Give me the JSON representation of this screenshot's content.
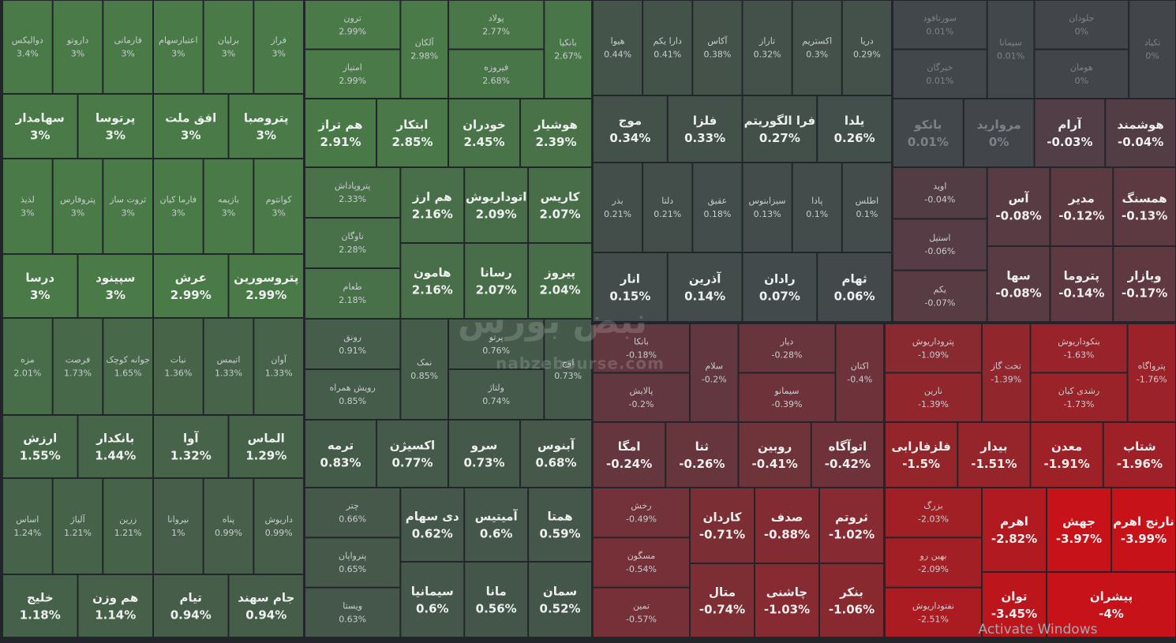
{
  "chart_data": {
    "type": "treemap",
    "categories": [
      "دوالیکس",
      "داروتو",
      "فارمانی",
      "اعتبارسهام",
      "برلیان",
      "فراز",
      "سهامدار",
      "پرتوسا",
      "افق ملت",
      "پتروصبا",
      "لذیذ",
      "پتروفارس",
      "ثروت ساز",
      "فارما کیان",
      "بازیمه",
      "کوانتوم",
      "درسا",
      "سپینود",
      "عرش",
      "پتروسورین",
      "مزه",
      "فرصت",
      "جوانه کوچک",
      "نبات",
      "اتیمس",
      "آوان",
      "ارزش",
      "بانکدار",
      "آوا",
      "الماس",
      "اساس",
      "آلیاژ",
      "زرین",
      "نیروانا",
      "پناه",
      "داریوش",
      "خلیج",
      "هم وزن",
      "تیام",
      "جام سهند",
      "ترون",
      "امتیاز",
      "آلکان",
      "پولاد",
      "فیروزه",
      "بانکیا",
      "هم تراز",
      "ابتکار",
      "خودران",
      "هوشیار",
      "پتروپاداش",
      "ناوگان",
      "طعام",
      "هم ارز",
      "اتوداریوش",
      "کاریس",
      "هامون",
      "رسانا",
      "پیروز",
      "رونق",
      "رویش همراه",
      "نمک",
      "پرتو",
      "ولتاژ",
      "اوج",
      "ترمه",
      "اکسیژن",
      "سرو",
      "آبنوس",
      "چتر",
      "پترواپان",
      "ویستا",
      "دی سهام",
      "آمیتیس",
      "همتا",
      "سیمانیا",
      "مانا",
      "سمان",
      "هیوا",
      "دارا یکم",
      "آکاس",
      "تاراز",
      "اکستریم",
      "دریا",
      "موج",
      "فلزا",
      "فرا الگوریتم",
      "یلدا",
      "بذر",
      "دلتا",
      "عقیق",
      "سیزابنوس",
      "پادا",
      "اطلس",
      "انار",
      "آذرین",
      "رادان",
      "ثهام",
      "سورنافود",
      "خیرگان",
      "سیمانا",
      "جلودان",
      "هومان",
      "تکیاد",
      "بانکو",
      "مروارید",
      "آرام",
      "هوشمند",
      "اوید",
      "استیل",
      "یکم",
      "آس",
      "مدیر",
      "همسنگ",
      "سها",
      "پتروما",
      "وبازار",
      "بانکا",
      "پالایش",
      "سلام",
      "دیار",
      "سیمانو",
      "اکتان",
      "امگا",
      "ثنا",
      "روبین",
      "اتوآگاه",
      "رخش",
      "مسگون",
      "تمین",
      "کاردان",
      "صدف",
      "ثروتم",
      "متال",
      "چاشنی",
      "بنکر",
      "پتروداریوش",
      "نارین",
      "تخت گاز",
      "بنکوداریوش",
      "رشدی کیان",
      "پترواگاه",
      "فلزفارابی",
      "بیدار",
      "معدن",
      "شتاب",
      "بزرگ",
      "بهین رو",
      "نفتوداریوش",
      "اهرم",
      "جهش",
      "نارنج اهرم",
      "توان",
      "پیشران"
    ],
    "values": [
      3.4,
      3,
      3,
      3,
      3,
      3,
      3,
      3,
      3,
      3,
      3,
      3,
      3,
      3,
      3,
      3,
      3,
      3,
      2.99,
      2.99,
      2.01,
      1.73,
      1.65,
      1.36,
      1.33,
      1.33,
      1.55,
      1.44,
      1.32,
      1.29,
      1.24,
      1.21,
      1.21,
      1,
      0.99,
      0.99,
      1.18,
      1.14,
      0.94,
      0.94,
      2.99,
      2.99,
      2.98,
      2.77,
      2.68,
      2.67,
      2.91,
      2.85,
      2.45,
      2.39,
      2.33,
      2.28,
      2.18,
      2.16,
      2.09,
      2.07,
      2.16,
      2.07,
      2.04,
      0.91,
      0.85,
      0.85,
      0.76,
      0.74,
      0.73,
      0.83,
      0.77,
      0.73,
      0.68,
      0.66,
      0.65,
      0.63,
      0.62,
      0.6,
      0.59,
      0.6,
      0.56,
      0.52,
      0.44,
      0.41,
      0.38,
      0.32,
      0.3,
      0.29,
      0.34,
      0.33,
      0.27,
      0.26,
      0.21,
      0.21,
      0.18,
      0.13,
      0.1,
      0.1,
      0.15,
      0.14,
      0.07,
      0.06,
      0.01,
      0.01,
      0.01,
      0,
      0,
      0,
      0.01,
      0,
      -0.03,
      -0.04,
      -0.04,
      -0.06,
      -0.07,
      -0.08,
      -0.12,
      -0.13,
      -0.08,
      -0.14,
      -0.17,
      -0.18,
      -0.2,
      -0.2,
      -0.28,
      -0.39,
      -0.4,
      -0.24,
      -0.26,
      -0.41,
      -0.42,
      -0.49,
      -0.54,
      -0.57,
      -0.71,
      -0.88,
      -1.02,
      -0.74,
      -1.03,
      -1.06,
      -1.09,
      -1.39,
      -1.39,
      -1.63,
      -1.73,
      -1.76,
      -1.5,
      -1.51,
      -1.91,
      -1.96,
      -2.03,
      -2.09,
      -2.51,
      -2.82,
      -3.97,
      -3.99,
      -3.45,
      -4
    ],
    "value_labels": [
      "3.4%",
      "3%",
      "3%",
      "3%",
      "3%",
      "3%",
      "3%",
      "3%",
      "3%",
      "3%",
      "3%",
      "3%",
      "3%",
      "3%",
      "3%",
      "3%",
      "3%",
      "3%",
      "2.99%",
      "2.99%",
      "2.01%",
      "1.73%",
      "1.65%",
      "1.36%",
      "1.33%",
      "1.33%",
      "1.55%",
      "1.44%",
      "1.32%",
      "1.29%",
      "1.24%",
      "1.21%",
      "1.21%",
      "1%",
      "0.99%",
      "0.99%",
      "1.18%",
      "1.14%",
      "0.94%",
      "0.94%",
      "2.99%",
      "2.99%",
      "2.98%",
      "2.77%",
      "2.68%",
      "2.67%",
      "2.91%",
      "2.85%",
      "2.45%",
      "2.39%",
      "2.33%",
      "2.28%",
      "2.18%",
      "2.16%",
      "2.09%",
      "2.07%",
      "2.16%",
      "2.07%",
      "2.04%",
      "0.91%",
      "0.85%",
      "0.85%",
      "0.76%",
      "0.74%",
      "0.73%",
      "0.83%",
      "0.77%",
      "0.73%",
      "0.68%",
      "0.66%",
      "0.65%",
      "0.63%",
      "0.62%",
      "0.6%",
      "0.59%",
      "0.6%",
      "0.56%",
      "0.52%",
      "0.44%",
      "0.41%",
      "0.38%",
      "0.32%",
      "0.3%",
      "0.29%",
      "0.34%",
      "0.33%",
      "0.27%",
      "0.26%",
      "0.21%",
      "0.21%",
      "0.18%",
      "0.13%",
      "0.1%",
      "0.1%",
      "0.15%",
      "0.14%",
      "0.07%",
      "0.06%",
      "0.01%",
      "0.01%",
      "0.01%",
      "0%",
      "0%",
      "0%",
      "0.01%",
      "0%",
      "-0.03%",
      "-0.04%",
      "-0.04%",
      "-0.06%",
      "-0.07%",
      "-0.08%",
      "-0.12%",
      "-0.13%",
      "-0.08%",
      "-0.14%",
      "-0.17%",
      "-0.18%",
      "-0.2%",
      "-0.2%",
      "-0.28%",
      "-0.39%",
      "-0.4%",
      "-0.24%",
      "-0.26%",
      "-0.41%",
      "-0.42%",
      "-0.49%",
      "-0.54%",
      "-0.57%",
      "-0.71%",
      "-0.88%",
      "-1.02%",
      "-0.74%",
      "-1.03%",
      "-1.06%",
      "-1.09%",
      "-1.39%",
      "-1.39%",
      "-1.63%",
      "-1.73%",
      "-1.76%",
      "-1.5%",
      "-1.51%",
      "-1.91%",
      "-1.96%",
      "-2.03%",
      "-2.09%",
      "-2.51%",
      "-2.82%",
      "-3.97%",
      "-3.99%",
      "-3.45%",
      "-4%"
    ]
  },
  "watermark": {
    "brand": "نبض بورس",
    "site": "nabzebourse.com"
  },
  "os_notice": "Activate Windows"
}
